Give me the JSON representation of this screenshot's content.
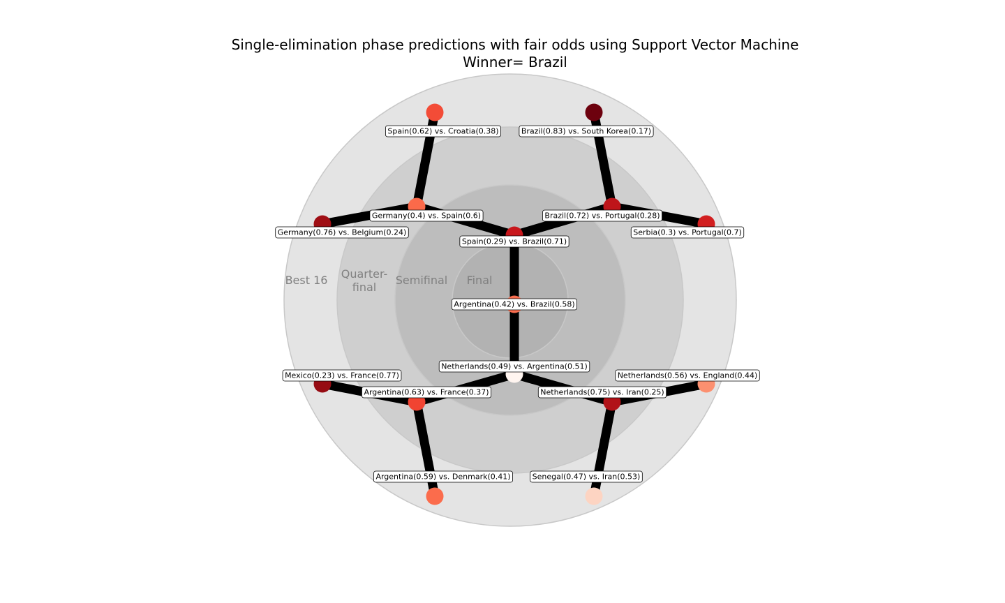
{
  "title": {
    "line1": "Single-elimination phase predictions with fair odds using Support Vector Machine",
    "line2": "Winner= Brazil"
  },
  "rings": [
    "Best 16",
    "Quarter-\nfinal",
    "Semifinal",
    "Final"
  ],
  "nodes": [
    {
      "id": "final",
      "label": "Argentina(0.42) vs. Brazil(0.58)",
      "color": "#fb6e4f"
    },
    {
      "id": "semi-top",
      "label": "Spain(0.29) vs. Brazil(0.71)",
      "color": "#c8171c"
    },
    {
      "id": "semi-bottom",
      "label": "Netherlands(0.49) vs. Argentina(0.51)",
      "color": "#fff5f0"
    },
    {
      "id": "qf-top-left",
      "label": "Germany(0.4) vs. Spain(0.6)",
      "color": "#fb6a4a"
    },
    {
      "id": "qf-top-right",
      "label": "Brazil(0.72) vs. Portugal(0.28)",
      "color": "#be151a"
    },
    {
      "id": "qf-bottom-left",
      "label": "Argentina(0.63) vs. France(0.37)",
      "color": "#f14432"
    },
    {
      "id": "qf-bottom-right",
      "label": "Netherlands(0.75) vs. Iran(0.25)",
      "color": "#b11218"
    },
    {
      "id": "r16-1",
      "label": "Spain(0.62) vs. Croatia(0.38)",
      "color": "#f34c37"
    },
    {
      "id": "r16-2",
      "label": "Germany(0.76) vs. Belgium(0.24)",
      "color": "#9f0e14"
    },
    {
      "id": "r16-3",
      "label": "Brazil(0.83) vs. South Korea(0.17)",
      "color": "#6d010e"
    },
    {
      "id": "r16-4",
      "label": "Serbia(0.3) vs. Portugal(0.7)",
      "color": "#d21f20"
    },
    {
      "id": "r16-5",
      "label": "Mexico(0.23) vs. France(0.77)",
      "color": "#960b13"
    },
    {
      "id": "r16-6",
      "label": "Argentina(0.59) vs. Denmark(0.41)",
      "color": "#fb6c4c"
    },
    {
      "id": "r16-7",
      "label": "Netherlands(0.56) vs. England(0.44)",
      "color": "#fc9070"
    },
    {
      "id": "r16-8",
      "label": "Senegal(0.47) vs. Iran(0.53)",
      "color": "#fdd4c2"
    }
  ]
}
